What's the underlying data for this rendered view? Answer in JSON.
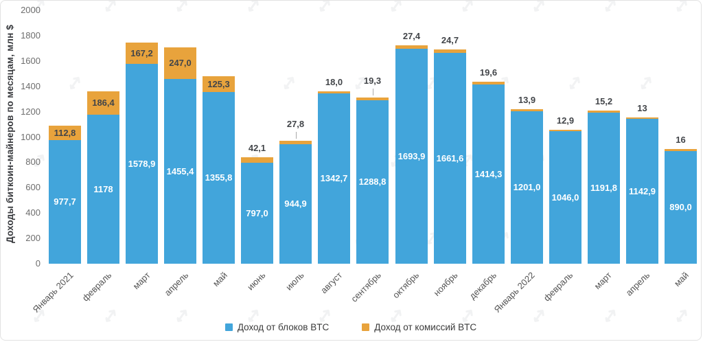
{
  "chart_data": {
    "type": "bar",
    "stacked": true,
    "title": "",
    "ylabel": "Доходы биткоин-майнеров по месяцам, млн $",
    "xlabel": "",
    "ylim": [
      0,
      2000
    ],
    "ytick_step": 200,
    "grid": false,
    "legend_position": "bottom",
    "categories": [
      "Январь 2021",
      "февраль",
      "март",
      "апрель",
      "май",
      "июнь",
      "июль",
      "август",
      "сентябрь",
      "октябрь",
      "ноябрь",
      "декабрь",
      "Январь 2022",
      "февраль",
      "март",
      "апрель",
      "май"
    ],
    "series": [
      {
        "name": "Доход от блоков BTC",
        "color": "#42A5DB",
        "values": [
          977.7,
          1178,
          1578.9,
          1455.4,
          1355.8,
          797.0,
          944.9,
          1342.7,
          1288.8,
          1693.9,
          1661.6,
          1414.3,
          1201.0,
          1046.0,
          1191.8,
          1142.9,
          890.0
        ],
        "labels": [
          "977,7",
          "1178",
          "1578,9",
          "1455,4",
          "1355,8",
          "797,0",
          "944,9",
          "1342,7",
          "1288,8",
          "1693,9",
          "1661,6",
          "1414,3",
          "1201,0",
          "1046,0",
          "1191,8",
          "1142,9",
          "890,0"
        ]
      },
      {
        "name": "Доход от комиссий BTC",
        "color": "#E8A33C",
        "values": [
          112.8,
          186.4,
          167.2,
          247.0,
          125.3,
          42.1,
          27.8,
          18.0,
          19.3,
          27.4,
          24.7,
          19.6,
          13.9,
          12.9,
          15.2,
          13,
          16
        ],
        "labels": [
          "112,8",
          "186,4",
          "167,2",
          "247,0",
          "125,3",
          "42,1",
          "27,8",
          "18,0",
          "19,3",
          "27,4",
          "24,7",
          "19,6",
          "13,9",
          "12,9",
          "15,2",
          "13",
          "16"
        ],
        "leader_indexes": [
          6,
          8
        ]
      }
    ],
    "value_label_colors": {
      "on_blue": "#ffffff",
      "dark": "#424549"
    }
  },
  "watermark": {
    "name": "forklog-logo-watermark"
  }
}
